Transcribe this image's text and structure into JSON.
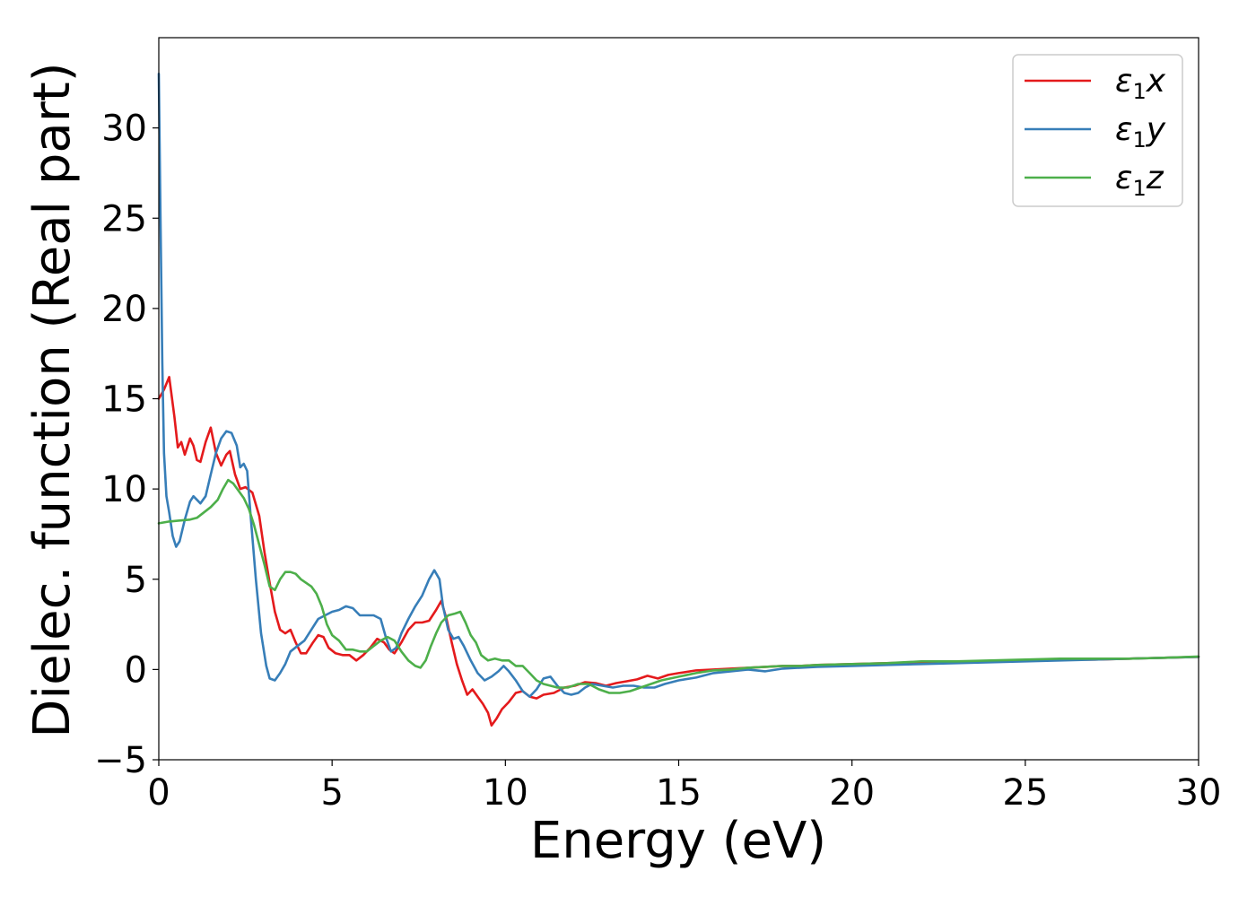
{
  "chart_data": {
    "type": "line",
    "title": "",
    "xlabel": "Energy (eV)",
    "ylabel": "Dielec. function (Real part)",
    "xlim": [
      0,
      30
    ],
    "ylim": [
      -5,
      35
    ],
    "xticks": [
      0,
      5,
      10,
      15,
      20,
      25,
      30
    ],
    "xtick_labels": [
      "0",
      "5",
      "10",
      "15",
      "20",
      "25",
      "30"
    ],
    "yticks": [
      -5,
      0,
      5,
      10,
      15,
      20,
      25,
      30
    ],
    "ytick_labels": [
      "−5",
      "0",
      "5",
      "10",
      "15",
      "20",
      "25",
      "30"
    ],
    "grid": false,
    "legend_position": "top-right",
    "series": [
      {
        "name": "ε1x",
        "legend_base": "ε",
        "legend_sub": "1",
        "legend_var": "x",
        "color": "#e41a1c",
        "points": [
          [
            0,
            15.0
          ],
          [
            0.15,
            15.5
          ],
          [
            0.3,
            16.2
          ],
          [
            0.45,
            14.0
          ],
          [
            0.55,
            12.3
          ],
          [
            0.65,
            12.6
          ],
          [
            0.75,
            11.9
          ],
          [
            0.9,
            12.8
          ],
          [
            1.0,
            12.4
          ],
          [
            1.1,
            11.6
          ],
          [
            1.2,
            11.5
          ],
          [
            1.35,
            12.6
          ],
          [
            1.5,
            13.4
          ],
          [
            1.65,
            12.0
          ],
          [
            1.8,
            11.3
          ],
          [
            1.95,
            11.9
          ],
          [
            2.05,
            12.1
          ],
          [
            2.2,
            10.8
          ],
          [
            2.35,
            10.0
          ],
          [
            2.5,
            10.1
          ],
          [
            2.7,
            9.8
          ],
          [
            2.9,
            8.5
          ],
          [
            3.05,
            6.5
          ],
          [
            3.2,
            4.8
          ],
          [
            3.35,
            3.2
          ],
          [
            3.5,
            2.2
          ],
          [
            3.65,
            2.0
          ],
          [
            3.8,
            2.2
          ],
          [
            3.95,
            1.5
          ],
          [
            4.1,
            0.9
          ],
          [
            4.25,
            0.9
          ],
          [
            4.45,
            1.5
          ],
          [
            4.6,
            1.9
          ],
          [
            4.75,
            1.8
          ],
          [
            4.9,
            1.2
          ],
          [
            5.1,
            0.9
          ],
          [
            5.3,
            0.8
          ],
          [
            5.5,
            0.8
          ],
          [
            5.7,
            0.5
          ],
          [
            5.9,
            0.8
          ],
          [
            6.1,
            1.2
          ],
          [
            6.3,
            1.7
          ],
          [
            6.5,
            1.5
          ],
          [
            6.65,
            1.1
          ],
          [
            6.8,
            0.9
          ],
          [
            7.0,
            1.5
          ],
          [
            7.2,
            2.2
          ],
          [
            7.4,
            2.6
          ],
          [
            7.6,
            2.6
          ],
          [
            7.8,
            2.7
          ],
          [
            8.0,
            3.3
          ],
          [
            8.15,
            3.8
          ],
          [
            8.3,
            2.8
          ],
          [
            8.45,
            1.5
          ],
          [
            8.6,
            0.3
          ],
          [
            8.75,
            -0.6
          ],
          [
            8.9,
            -1.4
          ],
          [
            9.05,
            -1.1
          ],
          [
            9.2,
            -1.5
          ],
          [
            9.35,
            -1.9
          ],
          [
            9.5,
            -2.4
          ],
          [
            9.6,
            -3.1
          ],
          [
            9.75,
            -2.7
          ],
          [
            9.9,
            -2.2
          ],
          [
            10.1,
            -1.8
          ],
          [
            10.3,
            -1.3
          ],
          [
            10.5,
            -1.2
          ],
          [
            10.7,
            -1.5
          ],
          [
            10.9,
            -1.6
          ],
          [
            11.1,
            -1.4
          ],
          [
            11.4,
            -1.3
          ],
          [
            11.7,
            -1.0
          ],
          [
            12.0,
            -0.9
          ],
          [
            12.3,
            -0.7
          ],
          [
            12.6,
            -0.75
          ],
          [
            12.9,
            -0.9
          ],
          [
            13.2,
            -0.75
          ],
          [
            13.5,
            -0.65
          ],
          [
            13.8,
            -0.55
          ],
          [
            14.1,
            -0.35
          ],
          [
            14.4,
            -0.5
          ],
          [
            14.7,
            -0.3
          ],
          [
            15.0,
            -0.2
          ],
          [
            15.5,
            -0.05
          ],
          [
            16.0,
            0.0
          ],
          [
            16.5,
            0.05
          ],
          [
            17.0,
            0.1
          ],
          [
            17.5,
            0.15
          ],
          [
            18.0,
            0.2
          ],
          [
            18.5,
            0.2
          ],
          [
            19.0,
            0.25
          ],
          [
            20.0,
            0.3
          ],
          [
            21.0,
            0.35
          ],
          [
            22.0,
            0.4
          ],
          [
            23.0,
            0.45
          ],
          [
            24.0,
            0.45
          ],
          [
            25.0,
            0.5
          ],
          [
            26.0,
            0.55
          ],
          [
            27.0,
            0.55
          ],
          [
            28.0,
            0.6
          ],
          [
            29.0,
            0.65
          ],
          [
            30.0,
            0.7
          ]
        ]
      },
      {
        "name": "ε1y",
        "legend_base": "ε",
        "legend_sub": "1",
        "legend_var": "y",
        "color": "#377eb8",
        "points": [
          [
            0,
            33.0
          ],
          [
            0.05,
            25.0
          ],
          [
            0.1,
            17.0
          ],
          [
            0.15,
            12.0
          ],
          [
            0.22,
            9.6
          ],
          [
            0.3,
            8.7
          ],
          [
            0.4,
            7.4
          ],
          [
            0.5,
            6.8
          ],
          [
            0.6,
            7.1
          ],
          [
            0.75,
            8.3
          ],
          [
            0.9,
            9.3
          ],
          [
            1.0,
            9.6
          ],
          [
            1.1,
            9.4
          ],
          [
            1.2,
            9.2
          ],
          [
            1.35,
            9.6
          ],
          [
            1.5,
            10.8
          ],
          [
            1.65,
            12.0
          ],
          [
            1.8,
            12.8
          ],
          [
            1.95,
            13.2
          ],
          [
            2.1,
            13.1
          ],
          [
            2.25,
            12.4
          ],
          [
            2.35,
            11.2
          ],
          [
            2.45,
            11.4
          ],
          [
            2.55,
            11.0
          ],
          [
            2.65,
            8.5
          ],
          [
            2.8,
            5.0
          ],
          [
            2.95,
            2.0
          ],
          [
            3.1,
            0.2
          ],
          [
            3.2,
            -0.5
          ],
          [
            3.35,
            -0.6
          ],
          [
            3.5,
            -0.2
          ],
          [
            3.65,
            0.3
          ],
          [
            3.8,
            1.0
          ],
          [
            4.0,
            1.3
          ],
          [
            4.2,
            1.6
          ],
          [
            4.4,
            2.2
          ],
          [
            4.6,
            2.8
          ],
          [
            4.8,
            3.0
          ],
          [
            5.0,
            3.2
          ],
          [
            5.2,
            3.3
          ],
          [
            5.4,
            3.5
          ],
          [
            5.6,
            3.4
          ],
          [
            5.8,
            3.0
          ],
          [
            6.0,
            3.0
          ],
          [
            6.2,
            3.0
          ],
          [
            6.4,
            2.8
          ],
          [
            6.55,
            1.8
          ],
          [
            6.7,
            1.0
          ],
          [
            6.85,
            1.2
          ],
          [
            7.0,
            2.0
          ],
          [
            7.2,
            2.8
          ],
          [
            7.4,
            3.5
          ],
          [
            7.6,
            4.1
          ],
          [
            7.8,
            5.0
          ],
          [
            7.95,
            5.5
          ],
          [
            8.1,
            5.0
          ],
          [
            8.2,
            3.5
          ],
          [
            8.35,
            2.2
          ],
          [
            8.5,
            1.7
          ],
          [
            8.65,
            1.8
          ],
          [
            8.8,
            1.3
          ],
          [
            9.0,
            0.5
          ],
          [
            9.2,
            -0.2
          ],
          [
            9.4,
            -0.6
          ],
          [
            9.6,
            -0.4
          ],
          [
            9.8,
            -0.1
          ],
          [
            9.95,
            0.2
          ],
          [
            10.1,
            -0.1
          ],
          [
            10.3,
            -0.6
          ],
          [
            10.5,
            -1.2
          ],
          [
            10.7,
            -1.5
          ],
          [
            10.9,
            -1.1
          ],
          [
            11.1,
            -0.5
          ],
          [
            11.3,
            -0.4
          ],
          [
            11.5,
            -0.9
          ],
          [
            11.7,
            -1.3
          ],
          [
            11.9,
            -1.4
          ],
          [
            12.1,
            -1.3
          ],
          [
            12.3,
            -1.0
          ],
          [
            12.5,
            -0.8
          ],
          [
            12.8,
            -0.9
          ],
          [
            13.1,
            -1.0
          ],
          [
            13.4,
            -0.9
          ],
          [
            13.7,
            -0.9
          ],
          [
            14.0,
            -1.0
          ],
          [
            14.3,
            -1.0
          ],
          [
            14.6,
            -0.8
          ],
          [
            15.0,
            -0.6
          ],
          [
            15.5,
            -0.45
          ],
          [
            16.0,
            -0.2
          ],
          [
            16.5,
            -0.1
          ],
          [
            17.0,
            0.0
          ],
          [
            17.5,
            -0.1
          ],
          [
            18.0,
            0.05
          ],
          [
            18.5,
            0.1
          ],
          [
            19.0,
            0.15
          ],
          [
            20.0,
            0.2
          ],
          [
            21.0,
            0.25
          ],
          [
            22.0,
            0.3
          ],
          [
            23.0,
            0.35
          ],
          [
            24.0,
            0.4
          ],
          [
            25.0,
            0.45
          ],
          [
            26.0,
            0.5
          ],
          [
            27.0,
            0.55
          ],
          [
            28.0,
            0.6
          ],
          [
            29.0,
            0.65
          ],
          [
            30.0,
            0.7
          ]
        ]
      },
      {
        "name": "ε1z",
        "legend_base": "ε",
        "legend_sub": "1",
        "legend_var": "z",
        "color": "#4daf4a",
        "points": [
          [
            0,
            8.1
          ],
          [
            0.3,
            8.2
          ],
          [
            0.6,
            8.25
          ],
          [
            0.9,
            8.3
          ],
          [
            1.1,
            8.4
          ],
          [
            1.3,
            8.7
          ],
          [
            1.5,
            9.0
          ],
          [
            1.7,
            9.4
          ],
          [
            1.85,
            10.0
          ],
          [
            2.0,
            10.5
          ],
          [
            2.15,
            10.3
          ],
          [
            2.3,
            9.9
          ],
          [
            2.45,
            9.5
          ],
          [
            2.6,
            8.9
          ],
          [
            2.75,
            8.0
          ],
          [
            2.9,
            6.9
          ],
          [
            3.05,
            5.8
          ],
          [
            3.2,
            4.6
          ],
          [
            3.35,
            4.4
          ],
          [
            3.5,
            5.0
          ],
          [
            3.65,
            5.4
          ],
          [
            3.8,
            5.4
          ],
          [
            3.95,
            5.3
          ],
          [
            4.1,
            5.0
          ],
          [
            4.25,
            4.8
          ],
          [
            4.4,
            4.6
          ],
          [
            4.55,
            4.2
          ],
          [
            4.7,
            3.5
          ],
          [
            4.85,
            2.5
          ],
          [
            5.0,
            1.9
          ],
          [
            5.2,
            1.6
          ],
          [
            5.4,
            1.1
          ],
          [
            5.6,
            1.1
          ],
          [
            5.8,
            1.0
          ],
          [
            6.0,
            1.0
          ],
          [
            6.2,
            1.3
          ],
          [
            6.4,
            1.6
          ],
          [
            6.6,
            1.8
          ],
          [
            6.8,
            1.6
          ],
          [
            7.0,
            1.0
          ],
          [
            7.2,
            0.5
          ],
          [
            7.4,
            0.2
          ],
          [
            7.55,
            0.1
          ],
          [
            7.7,
            0.5
          ],
          [
            7.85,
            1.3
          ],
          [
            8.0,
            2.0
          ],
          [
            8.15,
            2.6
          ],
          [
            8.35,
            3.0
          ],
          [
            8.55,
            3.1
          ],
          [
            8.7,
            3.2
          ],
          [
            8.85,
            2.6
          ],
          [
            9.0,
            1.9
          ],
          [
            9.15,
            1.5
          ],
          [
            9.3,
            0.8
          ],
          [
            9.5,
            0.5
          ],
          [
            9.7,
            0.6
          ],
          [
            9.9,
            0.5
          ],
          [
            10.1,
            0.5
          ],
          [
            10.3,
            0.2
          ],
          [
            10.5,
            0.2
          ],
          [
            10.7,
            -0.2
          ],
          [
            10.9,
            -0.6
          ],
          [
            11.1,
            -0.8
          ],
          [
            11.3,
            -0.9
          ],
          [
            11.5,
            -1.0
          ],
          [
            11.8,
            -1.0
          ],
          [
            12.1,
            -0.8
          ],
          [
            12.4,
            -0.8
          ],
          [
            12.7,
            -1.1
          ],
          [
            13.0,
            -1.3
          ],
          [
            13.3,
            -1.3
          ],
          [
            13.6,
            -1.2
          ],
          [
            13.9,
            -1.0
          ],
          [
            14.2,
            -0.8
          ],
          [
            14.5,
            -0.6
          ],
          [
            15.0,
            -0.4
          ],
          [
            15.5,
            -0.2
          ],
          [
            16.0,
            -0.05
          ],
          [
            16.5,
            0.0
          ],
          [
            17.0,
            0.1
          ],
          [
            17.5,
            0.15
          ],
          [
            18.0,
            0.2
          ],
          [
            18.5,
            0.2
          ],
          [
            19.0,
            0.25
          ],
          [
            20.0,
            0.3
          ],
          [
            21.0,
            0.35
          ],
          [
            22.0,
            0.45
          ],
          [
            23.0,
            0.45
          ],
          [
            24.0,
            0.5
          ],
          [
            25.0,
            0.55
          ],
          [
            26.0,
            0.6
          ],
          [
            27.0,
            0.6
          ],
          [
            28.0,
            0.6
          ],
          [
            29.0,
            0.65
          ],
          [
            30.0,
            0.72
          ]
        ]
      }
    ]
  }
}
